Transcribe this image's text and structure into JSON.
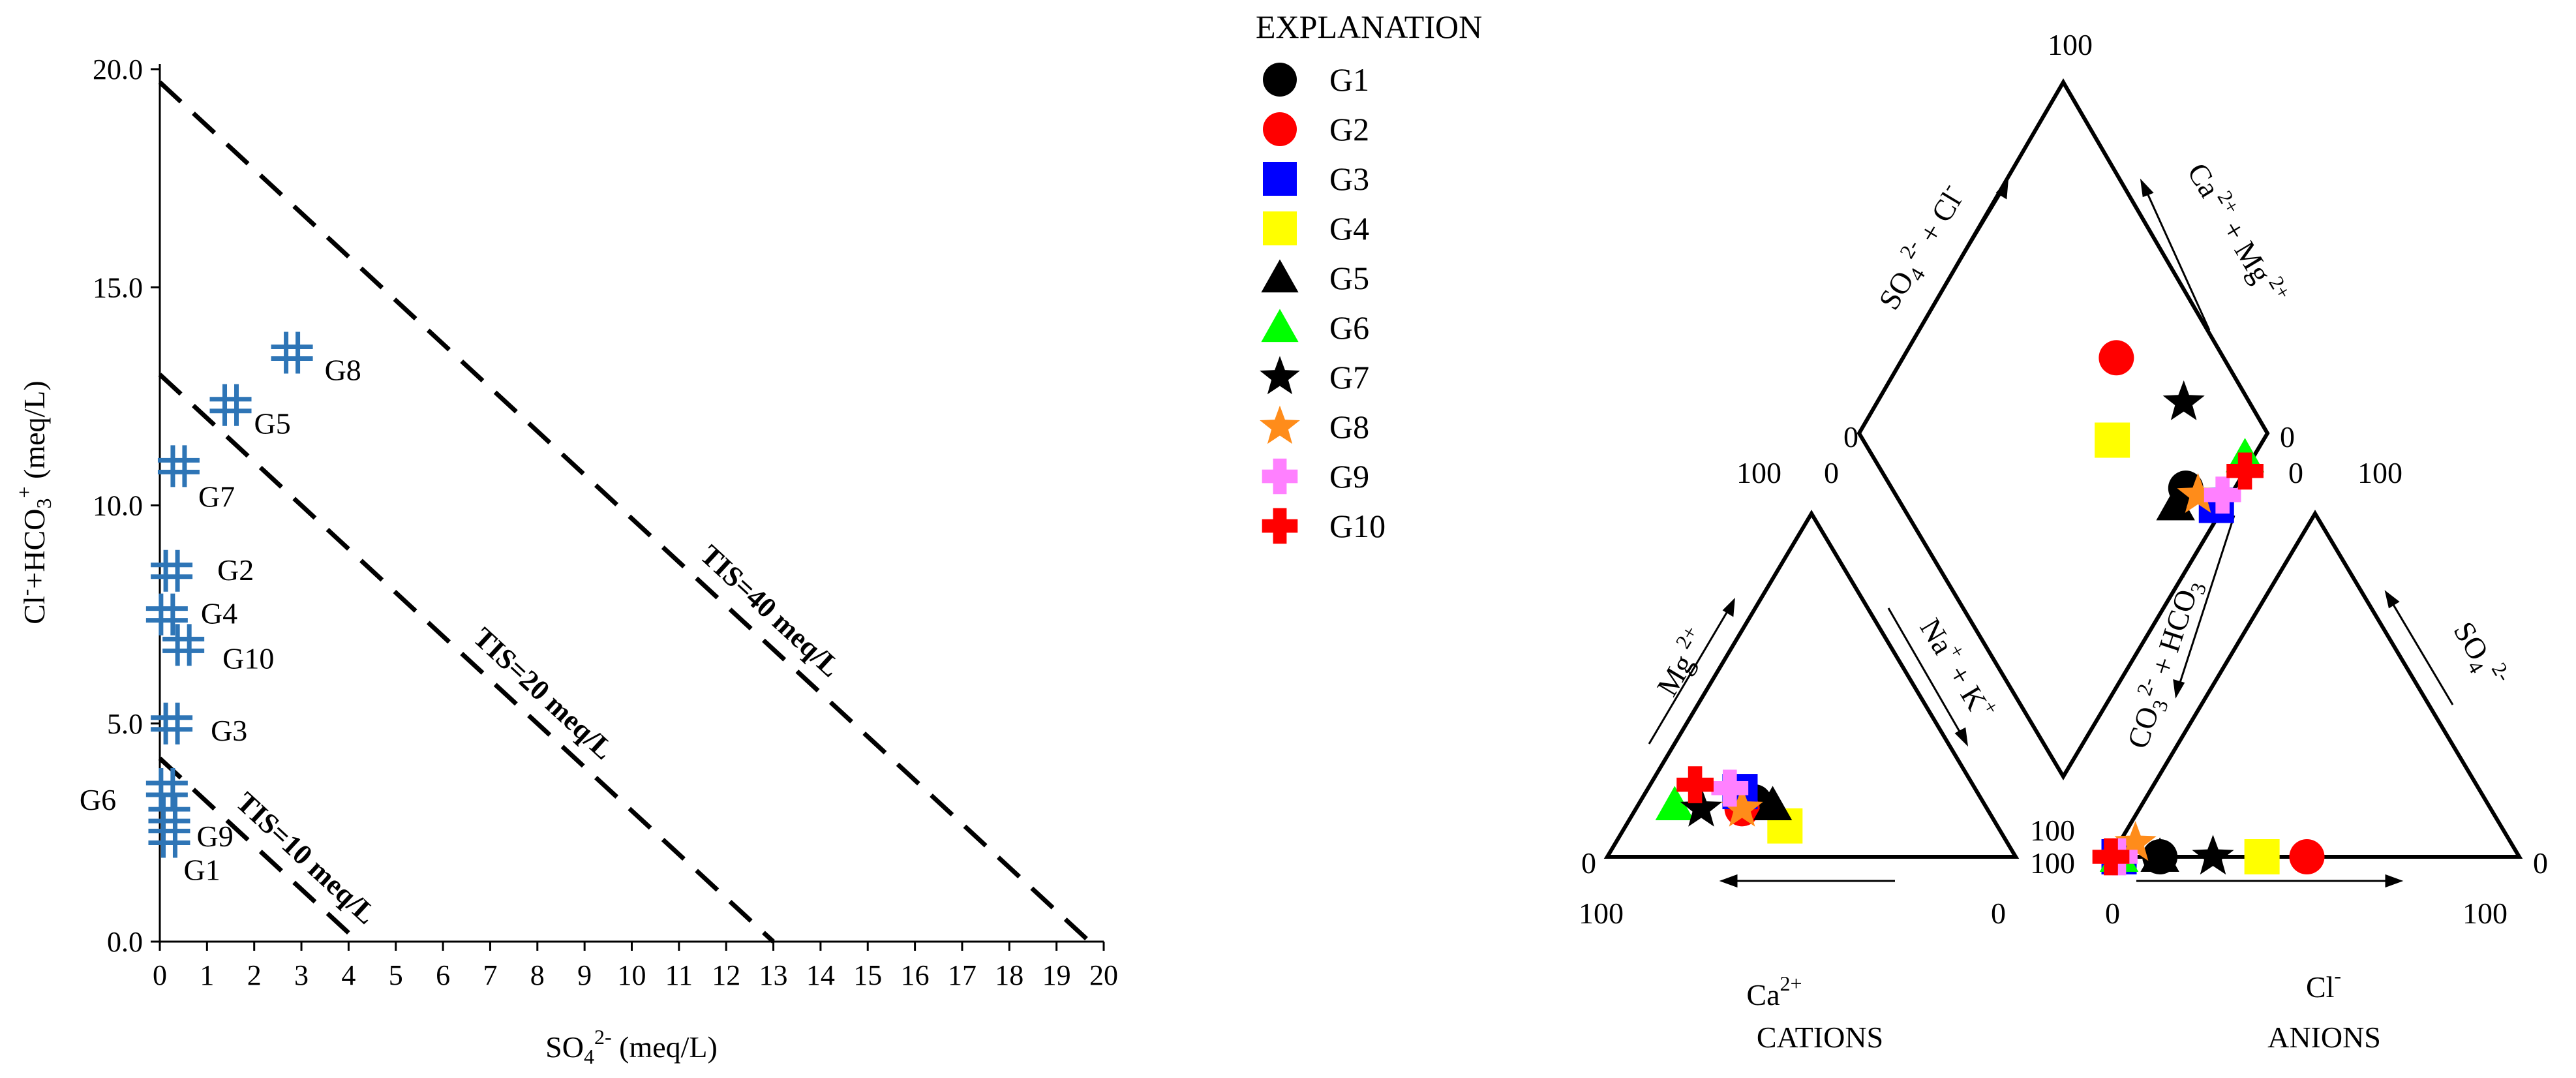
{
  "colors": {
    "G1": "#000000",
    "G2": "#ff0000",
    "G3": "#0000ff",
    "G4": "#ffff00",
    "G5": "#000000",
    "G6": "#00ff00",
    "G7": "#000000",
    "G8": "#ff8c1a",
    "G9": "#ff80ff",
    "G10": "#ff0000",
    "scatter_marker": "#2e75b6"
  },
  "legend": {
    "title": "EXPLANATION",
    "items": [
      {
        "label": "G1",
        "shape": "circle"
      },
      {
        "label": "G2",
        "shape": "circle"
      },
      {
        "label": "G3",
        "shape": "square"
      },
      {
        "label": "G4",
        "shape": "square"
      },
      {
        "label": "G5",
        "shape": "triangle"
      },
      {
        "label": "G6",
        "shape": "triangle"
      },
      {
        "label": "G7",
        "shape": "star"
      },
      {
        "label": "G8",
        "shape": "star"
      },
      {
        "label": "G9",
        "shape": "cross"
      },
      {
        "label": "G10",
        "shape": "cross"
      }
    ]
  },
  "chart_data": [
    {
      "type": "scatter",
      "xlabel": "SO₄²⁻ (meq/L)",
      "ylabel": "Cl⁻+HCO₃⁺ (meq/L)",
      "xlim": [
        0,
        20
      ],
      "ylim": [
        0,
        20
      ],
      "x_ticks": [
        "0",
        "1",
        "2",
        "3",
        "4",
        "5",
        "6",
        "7",
        "8",
        "9",
        "10",
        "11",
        "12",
        "13",
        "14",
        "15",
        "16",
        "17",
        "18",
        "19",
        "20"
      ],
      "y_ticks": [
        "0.0",
        "5.0",
        "10.0",
        "15.0",
        "20.0"
      ],
      "points": [
        {
          "label": "G1",
          "x": 0.2,
          "y": 2.4
        },
        {
          "label": "G2",
          "x": 0.25,
          "y": 8.5
        },
        {
          "label": "G3",
          "x": 0.25,
          "y": 5.0
        },
        {
          "label": "G4",
          "x": 0.15,
          "y": 7.5
        },
        {
          "label": "G5",
          "x": 1.5,
          "y": 12.3
        },
        {
          "label": "G6",
          "x": 0.15,
          "y": 3.5
        },
        {
          "label": "G7",
          "x": 0.4,
          "y": 10.9
        },
        {
          "label": "G8",
          "x": 2.8,
          "y": 13.5
        },
        {
          "label": "G9",
          "x": 0.2,
          "y": 2.9
        },
        {
          "label": "G10",
          "x": 0.5,
          "y": 6.8
        }
      ],
      "tis_lines": [
        {
          "label": "TIS=10 meq/L",
          "total": 4.2
        },
        {
          "label": "TIS=20 meq/L",
          "total": 13
        },
        {
          "label": "TIS=40 meq/L",
          "total": 19.7
        }
      ]
    },
    {
      "type": "piper",
      "cations_title": "CATIONS",
      "anions_title": "ANIONS",
      "cation_axes": {
        "bottom": "Ca²⁺",
        "left": "Mg ²⁺",
        "right": "Na⁺ + K⁺"
      },
      "anion_axes": {
        "bottom": "Cl⁻",
        "left": "CO₃²⁻ + HCO₃⁻",
        "right": "SO₄ ²⁻"
      },
      "diamond_axes": {
        "left": "SO₄²⁻ + Cl⁻",
        "right": "Ca ²⁺ + Mg ²⁺"
      },
      "tick_labels": {
        "zero": "0",
        "hundred": "100"
      },
      "samples": [
        {
          "label": "G1",
          "cation": {
            "Ca": 56,
            "Mg": 16,
            "NaK": 28
          },
          "anion": {
            "Cl": 12,
            "HCO3": 88,
            "SO4": 0
          }
        },
        {
          "label": "G2",
          "cation": {
            "Ca": 60,
            "Mg": 14,
            "NaK": 26
          },
          "anion": {
            "Cl": 48,
            "HCO3": 52,
            "SO4": 0
          }
        },
        {
          "label": "G3",
          "cation": {
            "Ca": 58,
            "Mg": 19,
            "NaK": 23
          },
          "anion": {
            "Cl": 2,
            "HCO3": 98,
            "SO4": 0
          }
        },
        {
          "label": "G4",
          "cation": {
            "Ca": 52,
            "Mg": 9,
            "NaK": 39
          },
          "anion": {
            "Cl": 37,
            "HCO3": 63,
            "SO4": 0
          }
        },
        {
          "label": "G5",
          "cation": {
            "Ca": 52,
            "Mg": 15,
            "NaK": 33
          },
          "anion": {
            "Cl": 12,
            "HCO3": 88,
            "SO4": 0
          }
        },
        {
          "label": "G6",
          "cation": {
            "Ca": 76,
            "Mg": 15,
            "NaK": 9
          },
          "anion": {
            "Cl": 2,
            "HCO3": 98,
            "SO4": 0
          }
        },
        {
          "label": "G7",
          "cation": {
            "Ca": 70,
            "Mg": 14,
            "NaK": 16
          },
          "anion": {
            "Cl": 25,
            "HCO3": 75,
            "SO4": 0
          }
        },
        {
          "label": "G8",
          "cation": {
            "Ca": 60,
            "Mg": 14,
            "NaK": 26
          },
          "anion": {
            "Cl": 4,
            "HCO3": 92,
            "SO4": 4
          }
        },
        {
          "label": "G9",
          "cation": {
            "Ca": 60,
            "Mg": 20,
            "NaK": 20
          },
          "anion": {
            "Cl": 2,
            "HCO3": 98,
            "SO4": 0
          }
        },
        {
          "label": "G10",
          "cation": {
            "Ca": 68,
            "Mg": 21,
            "NaK": 11
          },
          "anion": {
            "Cl": 0,
            "HCO3": 100,
            "SO4": 0
          }
        }
      ]
    }
  ]
}
